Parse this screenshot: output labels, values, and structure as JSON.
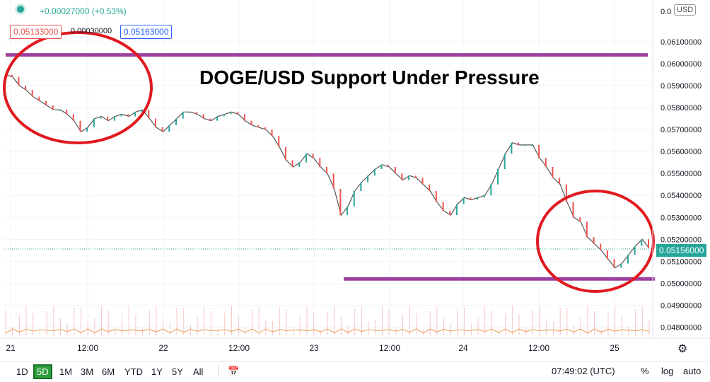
{
  "legend": {
    "change": "+0.00027000 (+0.53%)",
    "bid": "0.05133000",
    "spread": "0.00030000",
    "ask": "0.05163000"
  },
  "currency": "USD",
  "headline": "DOGE/USD Support Under Pressure",
  "current_price": "0.05156000",
  "settings_icon": "gear-icon",
  "bottom_bar": {
    "ranges": [
      "1D",
      "5D",
      "1M",
      "3M",
      "6M",
      "YTD",
      "1Y",
      "5Y",
      "All"
    ],
    "active_range": "5D",
    "calendar_icon": "calendar-range-icon",
    "time": "07:49:02 (UTC)",
    "percent": "%",
    "log": "log",
    "auto": "auto"
  },
  "colors": {
    "up": "#26a69a",
    "down": "#ef5350",
    "annotation_circle": "#e0191f",
    "annotation_line": "#9c3f9e",
    "volume_line": "#f0a868"
  },
  "chart_data": {
    "type": "line",
    "y_ticks": [
      "0.04800000",
      "0.04900000",
      "0.05000000",
      "0.05100000",
      "0.05200000",
      "0.05300000",
      "0.05400000",
      "0.05500000",
      "0.05600000",
      "0.05700000",
      "0.05800000",
      "0.05900000",
      "0.06000000",
      "0.06100000"
    ],
    "y_top_tick_partial": "0.0",
    "x_ticks": [
      "21",
      "12:00",
      "22",
      "12:00",
      "23",
      "12:00",
      "24",
      "12:00",
      "25"
    ],
    "ylim": [
      0.0475,
      0.0629
    ],
    "series": [
      {
        "values": [
          0.0595,
          0.0594,
          0.059,
          0.0588,
          0.0585,
          0.0583,
          0.0581,
          0.0579,
          0.0579,
          0.0577,
          0.0574,
          0.0569,
          0.0571,
          0.0575,
          0.0576,
          0.0574,
          0.0576,
          0.0577,
          0.0576,
          0.0578,
          0.0579,
          0.0575,
          0.0571,
          0.0569,
          0.0572,
          0.0575,
          0.0578,
          0.0578,
          0.0577,
          0.0575,
          0.0574,
          0.0576,
          0.0577,
          0.0578,
          0.0577,
          0.0574,
          0.0572,
          0.0571,
          0.057,
          0.0567,
          0.0562,
          0.0556,
          0.0553,
          0.0555,
          0.0559,
          0.0557,
          0.0553,
          0.055,
          0.0543,
          0.0531,
          0.0535,
          0.0542,
          0.0546,
          0.0549,
          0.0552,
          0.0554,
          0.0553,
          0.055,
          0.0547,
          0.0549,
          0.0548,
          0.0545,
          0.0542,
          0.0537,
          0.0533,
          0.0531,
          0.0536,
          0.0539,
          0.0538,
          0.0539,
          0.054,
          0.0545,
          0.0552,
          0.0559,
          0.0564,
          0.0563,
          0.0563,
          0.0563,
          0.0557,
          0.0553,
          0.0548,
          0.0545,
          0.0537,
          0.053,
          0.0528,
          0.0521,
          0.0518,
          0.0515,
          0.0511,
          0.0507,
          0.0509,
          0.0513,
          0.0517,
          0.052,
          0.0516
        ]
      }
    ],
    "annotations": {
      "resistance_level": 0.0604,
      "support_level": 0.0502
    }
  }
}
